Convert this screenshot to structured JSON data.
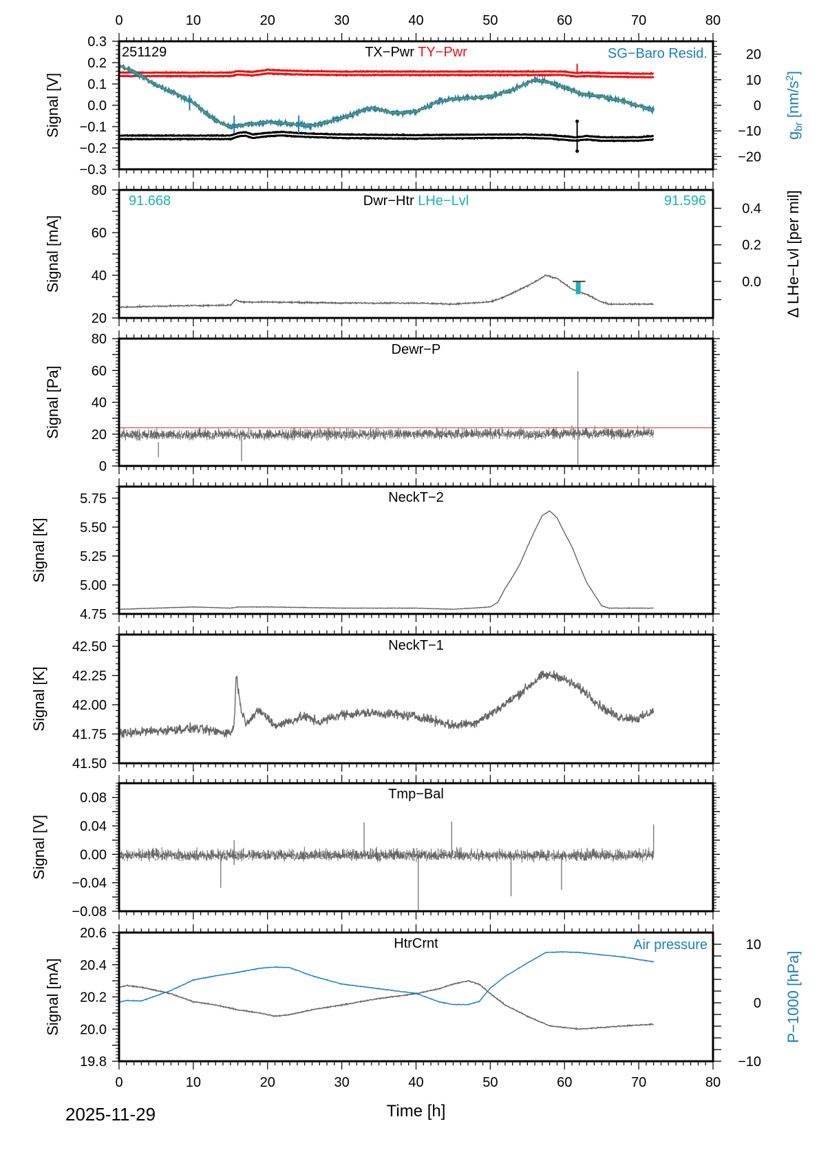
{
  "figure": {
    "date_label": "2025-11-29",
    "xlabel": "Time [h]",
    "x_ticks": [
      0,
      10,
      20,
      30,
      40,
      50,
      60,
      70,
      80
    ]
  },
  "chart_data": [
    {
      "type": "line",
      "id": "p1",
      "station_label": "251129",
      "title_parts": [
        {
          "text": "TX−Pwr",
          "color": "#000000"
        },
        {
          "text": "TY−Pwr",
          "color": "#ee1111"
        }
      ],
      "right_title": {
        "text": "SG−Baro Resid.",
        "color": "#1a7fbf"
      },
      "ylabel": "Signal [V]",
      "ylim": [
        -0.3,
        0.3
      ],
      "y_ticks": [
        -0.3,
        -0.2,
        -0.1,
        0.0,
        0.1,
        0.2,
        0.3
      ],
      "y_tick_labels": [
        "−0.3",
        "−0.2",
        "−0.1",
        "0.0",
        "0.1",
        "0.2",
        "0.3"
      ],
      "right_axis": {
        "label": "g_br [nm/s²]",
        "label_main": "g",
        "label_sub": "br",
        "label_rest": " [nm/s",
        "label_sup": "2",
        "label_end": "]",
        "color": "#1a7fbf",
        "ylim": [
          -25,
          25
        ],
        "ticks": [
          -20,
          -10,
          0,
          10,
          20
        ],
        "tick_labels": [
          "−20",
          "−10",
          "0",
          "10",
          "20"
        ]
      },
      "series": [
        {
          "name": "TY-Pwr",
          "color": "#ee1111",
          "axis": "left",
          "style": "band",
          "noise": 0.006,
          "x": [
            0,
            5,
            10,
            15,
            16,
            18,
            20,
            22,
            25,
            30,
            40,
            50,
            55,
            60,
            61.5,
            63,
            65,
            70,
            72
          ],
          "y": [
            0.145,
            0.145,
            0.145,
            0.145,
            0.152,
            0.148,
            0.158,
            0.155,
            0.152,
            0.15,
            0.15,
            0.15,
            0.15,
            0.15,
            0.143,
            0.145,
            0.143,
            0.14,
            0.14
          ]
        },
        {
          "name": "TX-Pwr",
          "color": "#000000",
          "axis": "left",
          "style": "band",
          "noise": 0.006,
          "x": [
            0,
            5,
            10,
            15,
            16,
            17,
            18,
            20,
            22,
            25,
            30,
            40,
            50,
            55,
            58,
            61.5,
            63,
            65,
            70,
            72
          ],
          "y": [
            -0.15,
            -0.15,
            -0.15,
            -0.15,
            -0.138,
            -0.134,
            -0.145,
            -0.137,
            -0.133,
            -0.14,
            -0.145,
            -0.148,
            -0.145,
            -0.145,
            -0.148,
            -0.158,
            -0.152,
            -0.158,
            -0.158,
            -0.152
          ]
        },
        {
          "name": "SG-Baro Resid.",
          "color": "#1a7fbf",
          "axis": "right",
          "style": "noisy",
          "noise": 0.8,
          "x": [
            0,
            2,
            5,
            8,
            10,
            13,
            15,
            17,
            20,
            23,
            26,
            30,
            34,
            37,
            40,
            43,
            45,
            48,
            50,
            53,
            56,
            58,
            60,
            62,
            65,
            68,
            72
          ],
          "y": [
            15.5,
            13,
            8,
            4,
            1,
            -6,
            -8.5,
            -7.5,
            -6.5,
            -7.2,
            -8,
            -5,
            -1,
            -3,
            -2.5,
            1.5,
            2.5,
            3,
            3.5,
            6,
            10,
            9,
            7,
            4.5,
            3.5,
            1.5,
            -2
          ]
        },
        {
          "name": "SG-Baro Resid. (smoothed)",
          "color": "#8a9a1a",
          "axis": "right",
          "style": "line",
          "noise": 0,
          "x": [
            0,
            2,
            5,
            8,
            10,
            13,
            15,
            17,
            20,
            23,
            26,
            30,
            34,
            37,
            40,
            43,
            45,
            48,
            50,
            53,
            56,
            58,
            60,
            62,
            65,
            68,
            72
          ],
          "y": [
            15.5,
            13,
            8,
            4,
            1,
            -6,
            -8.5,
            -7.5,
            -6.5,
            -7.2,
            -8,
            -5,
            -1,
            -3,
            -2.5,
            1.5,
            2.5,
            3,
            3.5,
            6,
            10,
            9,
            7,
            4.5,
            3.5,
            1.5,
            -2
          ]
        }
      ],
      "spikes": [
        {
          "x": 61.7,
          "axis": "left",
          "y_from": -0.155,
          "y_to": -0.075,
          "color": "#000000"
        },
        {
          "x": 61.7,
          "axis": "left",
          "y_from": -0.158,
          "y_to": -0.215,
          "color": "#000000"
        },
        {
          "x": 61.7,
          "axis": "left",
          "y_from": 0.15,
          "y_to": 0.195,
          "color": "#ee1111"
        },
        {
          "x": 9.5,
          "axis": "right",
          "y_from": -2,
          "y_to": 4,
          "color": "#1a7fbf"
        },
        {
          "x": 15.5,
          "axis": "right",
          "y_from": -11,
          "y_to": -4,
          "color": "#1a7fbf"
        },
        {
          "x": 24.2,
          "axis": "right",
          "y_from": -11,
          "y_to": -4,
          "color": "#1a7fbf"
        }
      ]
    },
    {
      "type": "line",
      "id": "p2",
      "title_parts": [
        {
          "text": "Dwr−Htr",
          "color": "#000000"
        },
        {
          "text": "LHe−Lvl",
          "color": "#1ab5b0"
        }
      ],
      "left_value": {
        "text": "91.668",
        "color": "#1ab5b0"
      },
      "right_value": {
        "text": "91.596",
        "color": "#1ab5b0"
      },
      "ylabel": "Signal [mA]",
      "ylim": [
        20,
        80
      ],
      "y_ticks": [
        20,
        30,
        40,
        50,
        60,
        70,
        80
      ],
      "y_tick_labels": [
        "20",
        "",
        "40",
        "",
        "60",
        "",
        "80"
      ],
      "right_axis": {
        "label": "Δ LHe−Lvl [per mil]",
        "color": "#000000",
        "ylim": [
          -0.2,
          0.5
        ],
        "ticks": [
          -0.1,
          0.0,
          0.1,
          0.2,
          0.3,
          0.4
        ],
        "tick_labels": [
          "",
          "0.0",
          "",
          "0.2",
          "",
          "0.4"
        ]
      },
      "series": [
        {
          "name": "Dwr-Htr",
          "color": "#666666",
          "axis": "left",
          "style": "noisy",
          "noise": 0.5,
          "x": [
            0,
            5,
            10,
            15,
            15.7,
            16.5,
            20,
            30,
            40,
            45,
            50,
            52,
            55,
            57.5,
            59,
            61,
            63,
            65,
            66,
            68,
            72
          ],
          "y": [
            25,
            25.5,
            25.8,
            26,
            28.5,
            27.5,
            27.5,
            27,
            27,
            26.5,
            27.5,
            30,
            35,
            40,
            38.5,
            33.5,
            31,
            27.5,
            26.5,
            26.5,
            26.5
          ]
        },
        {
          "name": "LHe-Lvl",
          "color": "#1ab5b0",
          "axis": "right",
          "style": "bar",
          "noise": 0,
          "x": [
            61.8
          ],
          "y": [
            -0.07
          ]
        }
      ],
      "markers": [
        {
          "x_from": 61.1,
          "x_to": 62.8,
          "axis": "right",
          "y": 0.0,
          "color": "#444444",
          "kind": "hline"
        }
      ]
    },
    {
      "type": "line",
      "id": "p3",
      "title_parts": [
        {
          "text": "Dewr−P",
          "color": "#000000"
        }
      ],
      "ylabel": "Signal [Pa]",
      "ylim": [
        0,
        80
      ],
      "y_ticks": [
        0,
        10,
        20,
        30,
        40,
        50,
        60,
        70,
        80
      ],
      "y_tick_labels": [
        "0",
        "",
        "20",
        "",
        "40",
        "",
        "60",
        "",
        "80"
      ],
      "series": [
        {
          "name": "Dewr-P",
          "color": "#666666",
          "axis": "left",
          "style": "dense",
          "noise": 5,
          "x": [
            0,
            72
          ],
          "y": [
            20,
            21
          ]
        },
        {
          "name": "Dewr-P reference",
          "color": "#e05050",
          "axis": "left",
          "style": "line",
          "noise": 0,
          "x": [
            0,
            80
          ],
          "y": [
            24,
            24
          ]
        }
      ],
      "spikes": [
        {
          "x": 61.8,
          "axis": "left",
          "y_from": 20,
          "y_to": 59.5,
          "color": "#666666"
        },
        {
          "x": 61.8,
          "axis": "left",
          "y_from": 20,
          "y_to": 1,
          "color": "#666666"
        },
        {
          "x": 16.5,
          "axis": "left",
          "y_from": 18,
          "y_to": 3,
          "color": "#666666"
        },
        {
          "x": 5.3,
          "axis": "left",
          "y_from": 15,
          "y_to": 5.5,
          "color": "#666666"
        }
      ]
    },
    {
      "type": "line",
      "id": "p4",
      "title_parts": [
        {
          "text": "NeckT−2",
          "color": "#000000"
        }
      ],
      "ylabel": "Signal [K]",
      "ylim": [
        4.75,
        5.85
      ],
      "y_ticks": [
        4.75,
        5.0,
        5.25,
        5.5,
        5.75
      ],
      "y_tick_labels": [
        "4.75",
        "5.00",
        "5.25",
        "5.50",
        "5.75"
      ],
      "series": [
        {
          "name": "NeckT-2",
          "color": "#666666",
          "axis": "left",
          "style": "noisy",
          "noise": 0.003,
          "x": [
            0,
            5,
            10,
            15,
            16,
            17,
            20,
            30,
            40,
            45,
            50,
            51,
            52,
            53,
            54,
            55,
            56,
            57,
            58,
            59,
            60,
            61,
            62,
            63,
            64,
            65,
            66,
            70,
            72
          ],
          "y": [
            4.79,
            4.8,
            4.81,
            4.8,
            4.81,
            4.81,
            4.81,
            4.8,
            4.8,
            4.79,
            4.81,
            4.85,
            4.97,
            5.07,
            5.18,
            5.33,
            5.47,
            5.6,
            5.64,
            5.58,
            5.45,
            5.33,
            5.17,
            5.02,
            4.92,
            4.82,
            4.8,
            4.8,
            4.8
          ]
        }
      ]
    },
    {
      "type": "line",
      "id": "p5",
      "title_parts": [
        {
          "text": "NeckT−1",
          "color": "#000000"
        }
      ],
      "ylabel": "Signal [K]",
      "ylim": [
        41.5,
        42.6
      ],
      "y_ticks": [
        41.5,
        41.75,
        42.0,
        42.25,
        42.5
      ],
      "y_tick_labels": [
        "41.50",
        "41.75",
        "42.00",
        "42.25",
        "42.50"
      ],
      "series": [
        {
          "name": "NeckT-1",
          "color": "#666666",
          "axis": "left",
          "style": "noisy",
          "noise": 0.06,
          "x": [
            0,
            3,
            6,
            10,
            12,
            15,
            15.5,
            15.8,
            16.3,
            17,
            19,
            21,
            23,
            25,
            27,
            30,
            34,
            37,
            40,
            43,
            45,
            48,
            50,
            53,
            55,
            57,
            59,
            61,
            63,
            65,
            67,
            70,
            72
          ],
          "y": [
            41.75,
            41.77,
            41.78,
            41.8,
            41.78,
            41.76,
            41.82,
            42.28,
            42.0,
            41.85,
            41.95,
            41.82,
            41.86,
            41.9,
            41.85,
            41.92,
            41.93,
            41.92,
            41.9,
            41.86,
            41.82,
            41.85,
            41.92,
            42.05,
            42.15,
            42.25,
            42.25,
            42.18,
            42.1,
            41.98,
            41.9,
            41.88,
            41.95
          ]
        }
      ]
    },
    {
      "type": "line",
      "id": "p6",
      "title_parts": [
        {
          "text": "Tmp−Bal",
          "color": "#000000"
        }
      ],
      "ylabel": "Signal [V]",
      "ylim": [
        -0.08,
        0.1
      ],
      "y_ticks": [
        -0.08,
        -0.06,
        -0.04,
        -0.02,
        0.0,
        0.02,
        0.04,
        0.06,
        0.08
      ],
      "y_tick_labels": [
        "−0.08",
        "",
        "−0.04",
        "",
        "0.00",
        "",
        "0.04",
        "",
        "0.08"
      ],
      "series": [
        {
          "name": "Tmp-Bal",
          "color": "#666666",
          "axis": "left",
          "style": "dense",
          "noise": 0.012,
          "x": [
            0,
            72
          ],
          "y": [
            0.0,
            0.0
          ]
        }
      ],
      "spikes": [
        {
          "x": 40.3,
          "axis": "left",
          "y_from": 0,
          "y_to": -0.078,
          "color": "#666666"
        },
        {
          "x": 52.8,
          "axis": "left",
          "y_from": 0,
          "y_to": -0.059,
          "color": "#666666"
        },
        {
          "x": 59.6,
          "axis": "left",
          "y_from": 0,
          "y_to": -0.05,
          "color": "#666666"
        },
        {
          "x": 13.7,
          "axis": "left",
          "y_from": 0,
          "y_to": -0.047,
          "color": "#666666"
        },
        {
          "x": 33.0,
          "axis": "left",
          "y_from": 0,
          "y_to": 0.045,
          "color": "#666666"
        },
        {
          "x": 44.8,
          "axis": "left",
          "y_from": 0,
          "y_to": 0.046,
          "color": "#666666"
        },
        {
          "x": 72.0,
          "axis": "left",
          "y_from": 0,
          "y_to": 0.042,
          "color": "#666666"
        },
        {
          "x": 15.5,
          "axis": "left",
          "y_from": -0.015,
          "y_to": 0.02,
          "color": "#666666"
        }
      ]
    },
    {
      "type": "line",
      "id": "p7",
      "title_parts": [
        {
          "text": "HtrCrnt",
          "color": "#000000"
        }
      ],
      "right_title": {
        "text": "Air pressure",
        "color": "#1a7fbf"
      },
      "ylabel": "Signal [mA]",
      "ylim": [
        19.8,
        20.6
      ],
      "y_ticks": [
        19.8,
        19.9,
        20.0,
        20.1,
        20.2,
        20.3,
        20.4,
        20.5,
        20.6
      ],
      "y_tick_labels": [
        "19.8",
        "",
        "20.0",
        "",
        "20.2",
        "",
        "20.4",
        "",
        "20.6"
      ],
      "right_axis": {
        "label": "P−1000 [hPa]",
        "color": "#1a7fbf",
        "ylim": [
          -10,
          12
        ],
        "ticks": [
          -10,
          -8,
          -6,
          -4,
          -2,
          0,
          2,
          4,
          6,
          8,
          10
        ],
        "tick_labels": [
          "−10",
          "",
          "",
          "",
          "",
          "0",
          "",
          "",
          "",
          "",
          "10"
        ]
      },
      "series": [
        {
          "name": "HtrCrnt",
          "color": "#666666",
          "axis": "left",
          "style": "noisy",
          "noise": 0.005,
          "x": [
            0,
            1,
            3,
            5,
            7,
            10,
            13,
            16,
            19,
            21,
            23,
            26,
            30,
            35,
            40,
            43,
            45,
            47,
            48.5,
            50,
            52,
            55,
            58,
            60,
            62,
            65,
            68,
            72
          ],
          "y": [
            20.26,
            20.27,
            20.26,
            20.24,
            20.22,
            20.17,
            20.15,
            20.12,
            20.1,
            20.08,
            20.09,
            20.12,
            20.15,
            20.19,
            20.22,
            20.25,
            20.28,
            20.3,
            20.28,
            20.22,
            20.15,
            20.08,
            20.02,
            20.01,
            20.0,
            20.01,
            20.02,
            20.03
          ]
        },
        {
          "name": "Air pressure",
          "color": "#1a7fbf",
          "axis": "right",
          "style": "noisy",
          "noise": 0.08,
          "x": [
            0,
            1,
            3,
            5,
            7,
            10,
            13,
            16,
            19,
            21,
            23,
            26,
            30,
            35,
            40,
            43,
            45,
            47,
            48.5,
            50,
            52,
            55,
            57.5,
            60,
            62,
            65,
            68,
            72
          ],
          "y": [
            0.1,
            0.4,
            0.3,
            1.2,
            2.1,
            3.9,
            4.6,
            5.2,
            5.9,
            6.1,
            6.0,
            4.6,
            3.2,
            2.4,
            1.6,
            0.2,
            -0.3,
            -0.3,
            0.2,
            2.5,
            4.5,
            6.8,
            8.6,
            8.7,
            8.6,
            8.2,
            7.8,
            7.0
          ]
        }
      ]
    }
  ]
}
